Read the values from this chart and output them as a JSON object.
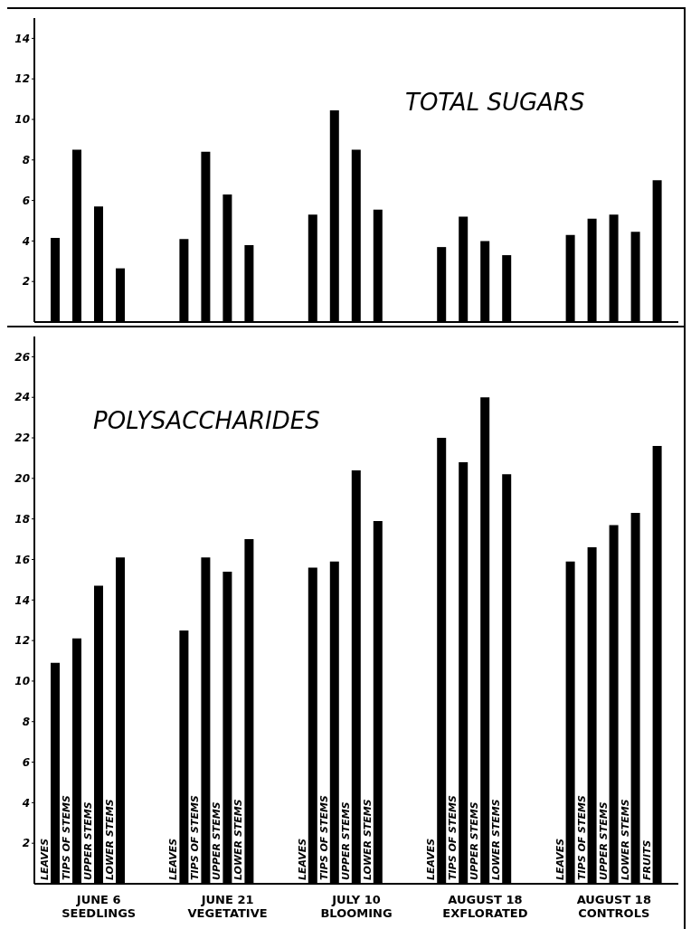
{
  "chart_data": [
    {
      "type": "bar",
      "title": "TOTAL SUGARS",
      "categories": [
        null,
        null,
        null,
        null,
        null
      ],
      "ylim": [
        0,
        15
      ],
      "yticks": [
        2,
        4,
        6,
        8,
        10,
        12,
        14
      ],
      "grid": false,
      "legend": false,
      "series": [
        {
          "color": "#000000",
          "values": [
            4.15,
            4.1,
            5.3,
            3.7,
            4.3
          ]
        },
        {
          "color": "#000000",
          "values": [
            8.5,
            8.4,
            10.45,
            5.2,
            5.1
          ]
        },
        {
          "color": "#000000",
          "values": [
            5.7,
            6.3,
            8.5,
            4.0,
            5.3
          ]
        },
        {
          "color": "#000000",
          "values": [
            2.65,
            3.8,
            5.55,
            3.3,
            4.45
          ]
        },
        {
          "color": "#000000",
          "values": [
            null,
            null,
            null,
            null,
            7.0
          ]
        }
      ]
    },
    {
      "type": "bar",
      "title": "POLYSACCHARIDES",
      "categories": [
        "JUNE 6\nSEEDLINGS",
        "JUNE 21\nVEGETATIVE",
        "JULY 10\nBLOOMING",
        "AUGUST 18\nEXFLORATED",
        "AUGUST 18\nCONTROLS"
      ],
      "ylim": [
        0,
        27
      ],
      "yticks": [
        2,
        4,
        6,
        8,
        10,
        12,
        14,
        16,
        18,
        20,
        22,
        24,
        26
      ],
      "grid": false,
      "legend": false,
      "series": [
        {
          "name": "LEAVES",
          "color": "#000000",
          "values": [
            10.9,
            12.5,
            15.6,
            22.0,
            15.9
          ]
        },
        {
          "name": "TIPS OF STEMS",
          "color": "#000000",
          "values": [
            12.1,
            16.1,
            15.9,
            20.8,
            16.6
          ]
        },
        {
          "name": "UPPER STEMS",
          "color": "#000000",
          "values": [
            14.7,
            15.4,
            20.4,
            24.0,
            17.7
          ]
        },
        {
          "name": "LOWER STEMS",
          "color": "#000000",
          "values": [
            16.1,
            17.0,
            17.9,
            20.2,
            18.3
          ]
        },
        {
          "name": "FRUITS",
          "color": "#000000",
          "values": [
            null,
            null,
            null,
            null,
            21.6
          ]
        }
      ]
    }
  ]
}
